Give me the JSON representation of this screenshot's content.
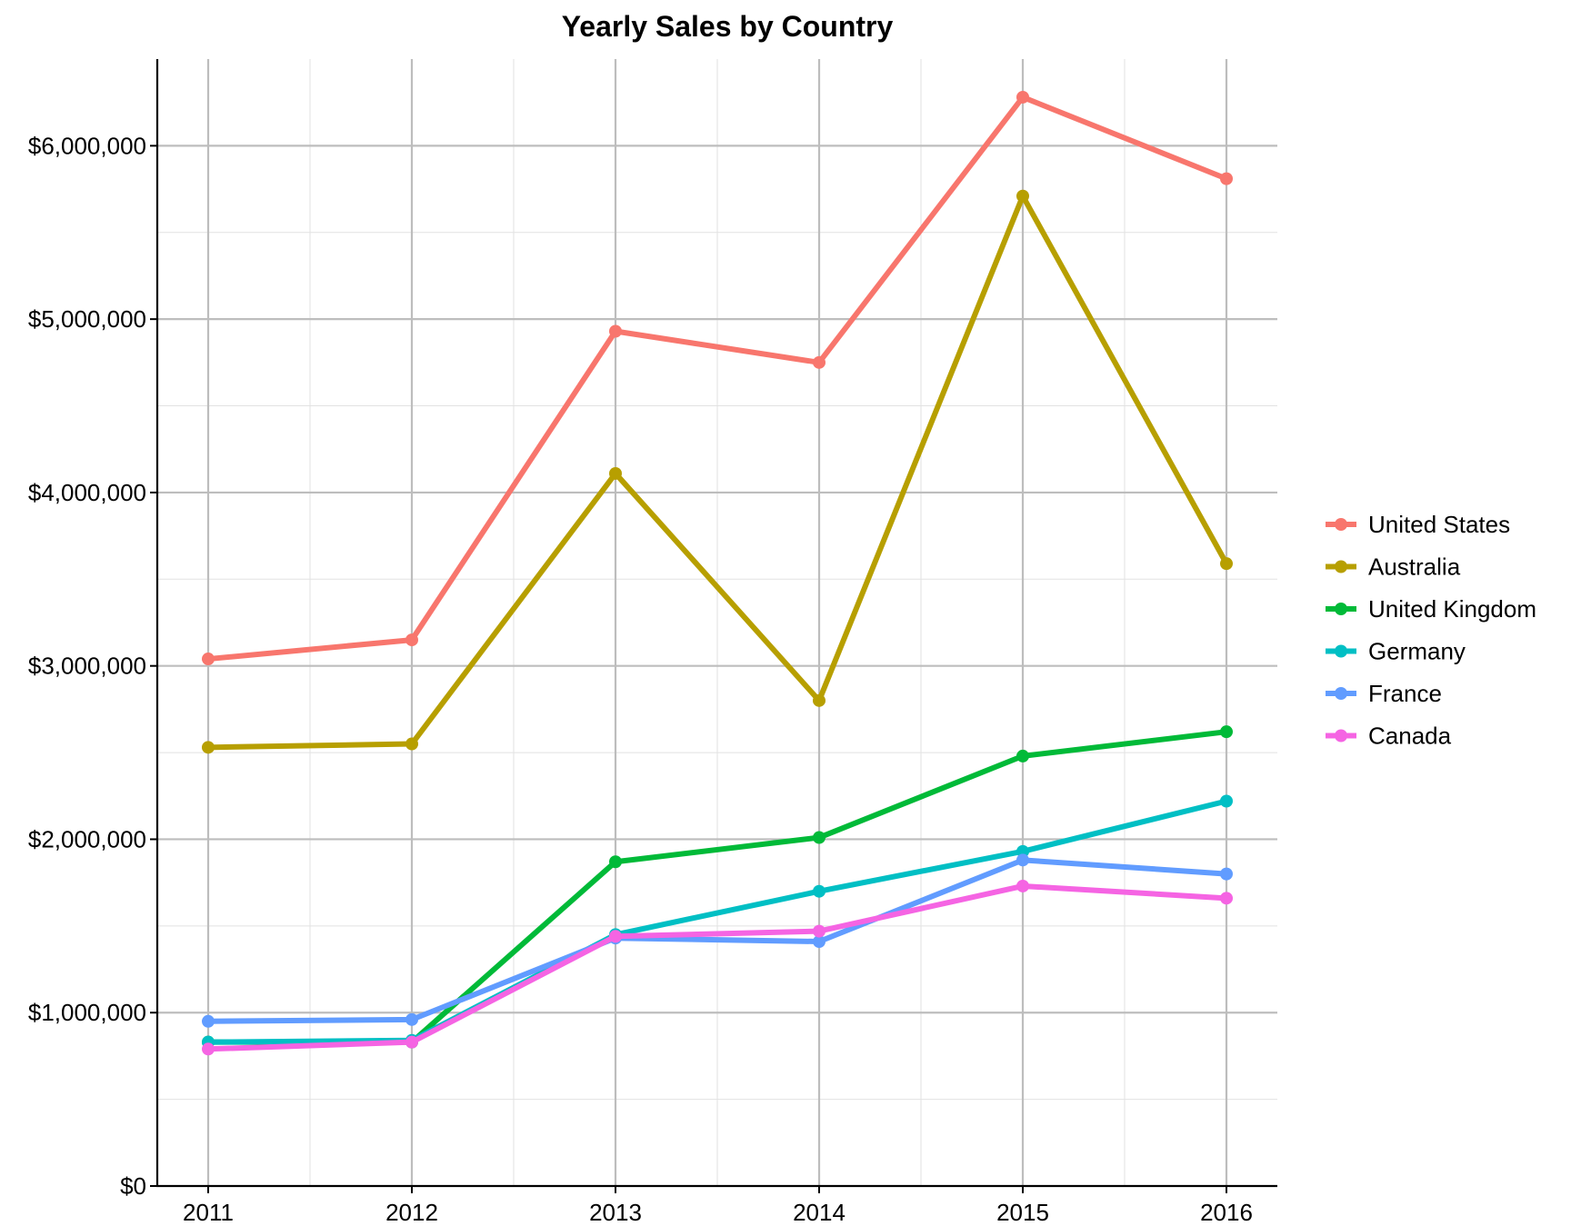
{
  "chart_data": {
    "type": "line",
    "title": "Yearly Sales by Country",
    "xlabel": "",
    "ylabel": "",
    "x": [
      "2011",
      "2012",
      "2013",
      "2014",
      "2015",
      "2016"
    ],
    "ylim": [
      0,
      6500000
    ],
    "y_ticks": [
      0,
      1000000,
      2000000,
      3000000,
      4000000,
      5000000,
      6000000
    ],
    "y_tick_labels": [
      "$0",
      "$1,000,000",
      "$2,000,000",
      "$3,000,000",
      "$4,000,000",
      "$5,000,000",
      "$6,000,000"
    ],
    "grid": true,
    "legend_position": "right",
    "series": [
      {
        "name": "United States",
        "color": "#F8766D",
        "values": [
          3040000,
          3150000,
          4930000,
          4750000,
          6280000,
          5810000
        ]
      },
      {
        "name": "Australia",
        "color": "#B79F00",
        "values": [
          2530000,
          2550000,
          4110000,
          2800000,
          5710000,
          3590000
        ]
      },
      {
        "name": "United Kingdom",
        "color": "#00BA38",
        "values": [
          830000,
          830000,
          1870000,
          2010000,
          2480000,
          2620000
        ]
      },
      {
        "name": "Germany",
        "color": "#00BFC4",
        "values": [
          830000,
          840000,
          1450000,
          1700000,
          1930000,
          2220000
        ]
      },
      {
        "name": "France",
        "color": "#619CFF",
        "values": [
          950000,
          960000,
          1430000,
          1410000,
          1880000,
          1800000
        ]
      },
      {
        "name": "Canada",
        "color": "#F564E3",
        "values": [
          790000,
          830000,
          1440000,
          1470000,
          1730000,
          1660000
        ]
      }
    ]
  }
}
